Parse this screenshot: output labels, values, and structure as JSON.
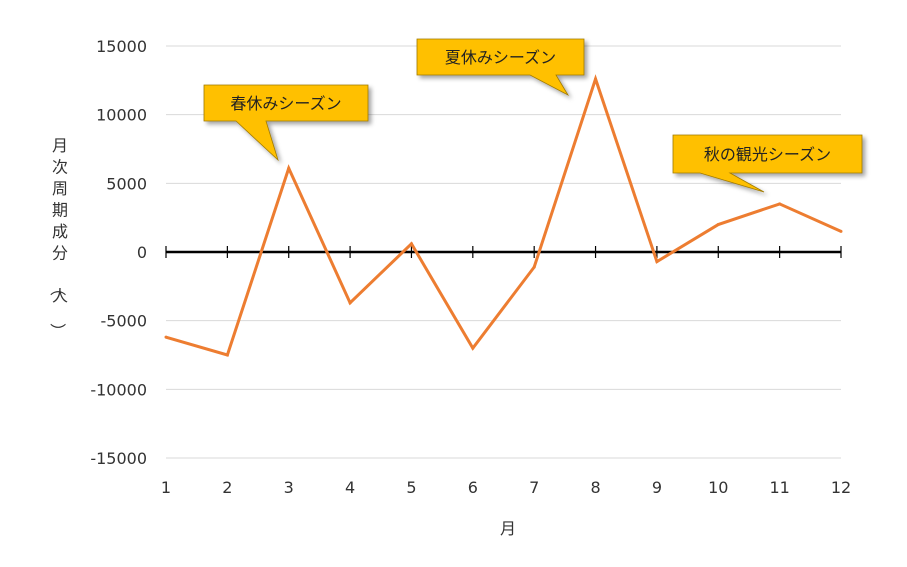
{
  "chart_data": {
    "type": "line",
    "title": "",
    "xlabel": "月",
    "ylabel": "月次周期成分（人）",
    "categories": [
      "1",
      "2",
      "3",
      "4",
      "5",
      "6",
      "7",
      "8",
      "9",
      "10",
      "11",
      "12"
    ],
    "yticks": [
      "15000",
      "10000",
      "5000",
      "0",
      "-5000",
      "-10000",
      "-15000"
    ],
    "ylim": [
      -15000,
      15000
    ],
    "grid": true,
    "legend": "none",
    "series": [
      {
        "color": "#ED7D31",
        "values": [
          -6200,
          -7500,
          6100,
          -3700,
          600,
          -7000,
          -1100,
          12600,
          -700,
          2000,
          3500,
          1500
        ]
      }
    ],
    "annotations": [
      {
        "text": "春休みシーズン",
        "target_index": 2
      },
      {
        "text": "夏休みシーズン",
        "target_index": 7
      },
      {
        "text": "秋の観光シーズン",
        "target_index": 10
      }
    ],
    "colors": {
      "callout_fill": "#FFC000",
      "callout_border": "#A07A00",
      "axis": "#000000",
      "grid": "#D9D9D9"
    }
  }
}
